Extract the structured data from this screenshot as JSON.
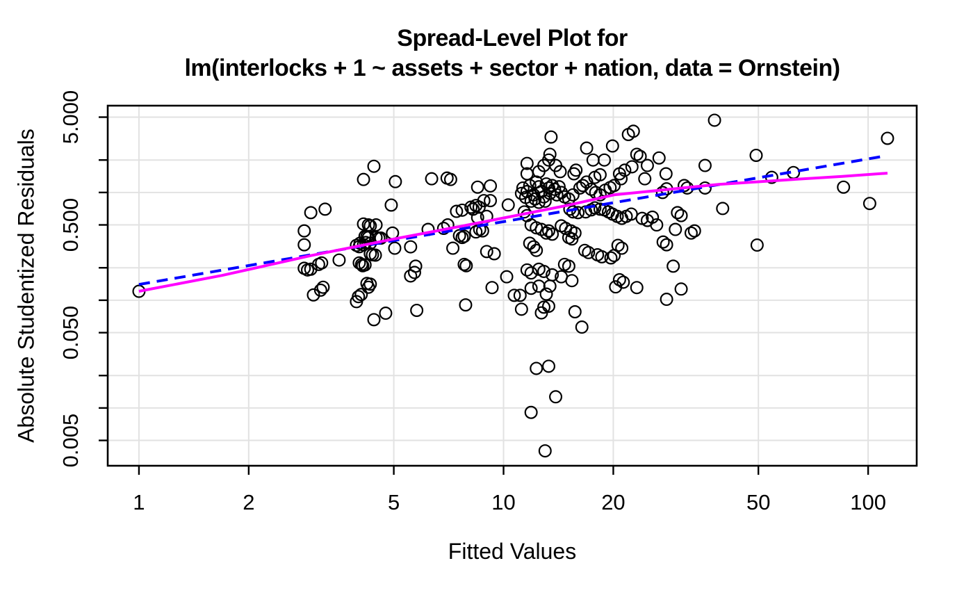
{
  "chart_data": {
    "type": "scatter",
    "title_line1": "Spread-Level Plot for",
    "title_line2": "lm(interlocks + 1 ~ assets + sector + nation, data = Ornstein)",
    "xlabel": "Fitted Values",
    "ylabel": "Absolute Studentized Residuals",
    "x_scale": "log",
    "y_scale": "log",
    "xlim": [
      0.821,
      135.9
    ],
    "ylim": [
      0.00291,
      6.39
    ],
    "grid": true,
    "x_ticks": [
      {
        "v": 1,
        "label": "1"
      },
      {
        "v": 2,
        "label": "2"
      },
      {
        "v": 5,
        "label": "5"
      },
      {
        "v": 10,
        "label": "10"
      },
      {
        "v": 20,
        "label": "20"
      },
      {
        "v": 50,
        "label": "50"
      },
      {
        "v": 100,
        "label": "100"
      }
    ],
    "y_ticks": [
      {
        "v": 5,
        "label": "5.000"
      },
      {
        "v": 2,
        "label": ""
      },
      {
        "v": 1,
        "label": ""
      },
      {
        "v": 0.5,
        "label": "0.500"
      },
      {
        "v": 0.2,
        "label": ""
      },
      {
        "v": 0.1,
        "label": ""
      },
      {
        "v": 0.05,
        "label": "0.050"
      },
      {
        "v": 0.02,
        "label": ""
      },
      {
        "v": 0.01,
        "label": ""
      },
      {
        "v": 0.005,
        "label": "0.005"
      }
    ],
    "series": [
      {
        "name": "observations",
        "type": "scatter",
        "marker": "open-circle",
        "color": "#000000",
        "points": [
          [
            1.0,
            0.121
          ],
          [
            2.96,
            0.65
          ],
          [
            3.24,
            0.7
          ],
          [
            2.84,
            0.44
          ],
          [
            2.84,
            0.327
          ],
          [
            3.11,
            0.215
          ],
          [
            3.17,
            0.222
          ],
          [
            2.84,
            0.198
          ],
          [
            2.9,
            0.191
          ],
          [
            2.96,
            0.194
          ],
          [
            3.2,
            0.132
          ],
          [
            3.54,
            0.236
          ],
          [
            3.01,
            0.112
          ],
          [
            3.15,
            0.124
          ],
          [
            4.13,
            1.32
          ],
          [
            4.41,
            1.75
          ],
          [
            4.13,
            0.51
          ],
          [
            4.26,
            0.5
          ],
          [
            4.31,
            0.49
          ],
          [
            4.47,
            0.5
          ],
          [
            4.22,
            0.39
          ],
          [
            4.31,
            0.337
          ],
          [
            3.95,
            0.323
          ],
          [
            4.02,
            0.314
          ],
          [
            4.11,
            0.209
          ],
          [
            4.02,
            0.222
          ],
          [
            4.08,
            0.215
          ],
          [
            4.22,
            0.143
          ],
          [
            4.31,
            0.141
          ],
          [
            4.17,
            0.392
          ],
          [
            4.26,
            0.382
          ],
          [
            4.47,
            0.382
          ],
          [
            4.55,
            0.377
          ],
          [
            4.61,
            0.377
          ],
          [
            4.04,
            0.338
          ],
          [
            4.13,
            0.327
          ],
          [
            4.19,
            0.343
          ],
          [
            4.31,
            0.27
          ],
          [
            4.37,
            0.264
          ],
          [
            4.45,
            0.262
          ],
          [
            4.17,
            0.213
          ],
          [
            3.95,
            0.097
          ],
          [
            4.0,
            0.108
          ],
          [
            4.07,
            0.113
          ],
          [
            4.26,
            0.132
          ],
          [
            4.41,
            0.066
          ],
          [
            4.75,
            0.0758
          ],
          [
            4.96,
            0.42
          ],
          [
            5.03,
            0.304
          ],
          [
            4.92,
            0.764
          ],
          [
            5.05,
            1.26
          ],
          [
            5.56,
            0.313
          ],
          [
            5.74,
            0.207
          ],
          [
            5.56,
            0.168
          ],
          [
            5.7,
            0.181
          ],
          [
            5.78,
            0.0805
          ],
          [
            6.21,
            0.454
          ],
          [
            6.35,
            1.34
          ],
          [
            6.85,
            0.464
          ],
          [
            7.03,
            0.5
          ],
          [
            7.0,
            1.36
          ],
          [
            7.16,
            1.32
          ],
          [
            7.26,
            0.304
          ],
          [
            7.43,
            0.668
          ],
          [
            7.57,
            0.397
          ],
          [
            7.7,
            0.685
          ],
          [
            7.7,
            0.382
          ],
          [
            7.8,
            0.392
          ],
          [
            7.8,
            0.215
          ],
          [
            7.9,
            0.209
          ],
          [
            7.87,
            0.0905
          ],
          [
            8.14,
            0.73
          ],
          [
            8.25,
            0.7
          ],
          [
            8.4,
            0.757
          ],
          [
            8.4,
            0.43
          ],
          [
            8.49,
            1.12
          ],
          [
            8.49,
            0.585
          ],
          [
            8.57,
            0.73
          ],
          [
            8.6,
            0.454
          ],
          [
            8.76,
            0.44
          ],
          [
            8.83,
            0.84
          ],
          [
            8.99,
            0.6
          ],
          [
            8.99,
            0.283
          ],
          [
            9.2,
            1.15
          ],
          [
            9.2,
            0.84
          ],
          [
            9.3,
            0.131
          ],
          [
            9.43,
            0.27
          ],
          [
            10.2,
            0.165
          ],
          [
            10.3,
            0.766
          ],
          [
            10.7,
            0.111
          ],
          [
            11.6,
            1.86
          ],
          [
            11.6,
            1.49
          ],
          [
            12.9,
            1.78
          ],
          [
            13.3,
            2.0
          ],
          [
            13.4,
            2.26
          ],
          [
            13.9,
            1.78
          ],
          [
            12.5,
            1.56
          ],
          [
            14.3,
            1.56
          ],
          [
            13.5,
            3.27
          ],
          [
            11.3,
            1.1
          ],
          [
            11.6,
            1.02
          ],
          [
            11.8,
            1.16
          ],
          [
            12.1,
            0.95
          ],
          [
            12.3,
            1.25
          ],
          [
            12.5,
            1.13
          ],
          [
            12.7,
            1.02
          ],
          [
            12.9,
            0.91
          ],
          [
            13.1,
            1.2
          ],
          [
            13.3,
            1.1
          ],
          [
            13.4,
            0.98
          ],
          [
            13.6,
            1.16
          ],
          [
            13.8,
            1.07
          ],
          [
            14.0,
            0.95
          ],
          [
            14.2,
            1.13
          ],
          [
            14.4,
            1.0
          ],
          [
            11.2,
            0.98
          ],
          [
            11.5,
            0.9
          ],
          [
            11.9,
            0.83
          ],
          [
            12.2,
            0.87
          ],
          [
            12.5,
            0.81
          ],
          [
            13.0,
            0.83
          ],
          [
            11.4,
            0.66
          ],
          [
            11.6,
            0.61
          ],
          [
            11.9,
            0.5
          ],
          [
            12.3,
            0.47
          ],
          [
            12.7,
            0.454
          ],
          [
            13.1,
            0.42
          ],
          [
            13.3,
            0.44
          ],
          [
            13.6,
            0.41
          ],
          [
            11.8,
            0.338
          ],
          [
            12.1,
            0.313
          ],
          [
            12.3,
            0.29
          ],
          [
            11.6,
            0.191
          ],
          [
            11.9,
            0.179
          ],
          [
            12.5,
            0.194
          ],
          [
            12.9,
            0.185
          ],
          [
            13.6,
            0.172
          ],
          [
            11.1,
            0.111
          ],
          [
            11.2,
            0.0825
          ],
          [
            11.9,
            0.129
          ],
          [
            12.5,
            0.135
          ],
          [
            12.7,
            0.0763
          ],
          [
            12.9,
            0.0862
          ],
          [
            13.1,
            0.114
          ],
          [
            13.3,
            0.088
          ],
          [
            13.4,
            0.135
          ],
          [
            12.3,
            0.0233
          ],
          [
            13.3,
            0.0244
          ],
          [
            13.9,
            0.0127
          ],
          [
            11.9,
            0.0091
          ],
          [
            13.0,
            0.004
          ],
          [
            14.7,
            0.91
          ],
          [
            15.1,
            0.87
          ],
          [
            15.5,
            0.95
          ],
          [
            16.2,
            1.1
          ],
          [
            16.5,
            1.16
          ],
          [
            16.9,
            1.25
          ],
          [
            17.4,
            1.07
          ],
          [
            17.9,
            1.0
          ],
          [
            18.4,
            0.95
          ],
          [
            19.0,
            1.05
          ],
          [
            19.6,
            1.11
          ],
          [
            20.1,
            1.16
          ],
          [
            15.6,
            1.49
          ],
          [
            15.8,
            1.61
          ],
          [
            16.9,
            2.58
          ],
          [
            17.6,
            2.0
          ],
          [
            18.9,
            2.0
          ],
          [
            19.9,
            2.7
          ],
          [
            17.8,
            1.38
          ],
          [
            18.4,
            1.46
          ],
          [
            15.2,
            0.7
          ],
          [
            15.5,
            0.66
          ],
          [
            16.0,
            0.65
          ],
          [
            16.8,
            0.66
          ],
          [
            17.4,
            0.69
          ],
          [
            17.8,
            0.72
          ],
          [
            18.4,
            0.7
          ],
          [
            18.9,
            0.69
          ],
          [
            19.4,
            0.66
          ],
          [
            19.9,
            0.63
          ],
          [
            14.4,
            0.49
          ],
          [
            14.8,
            0.464
          ],
          [
            15.3,
            0.44
          ],
          [
            15.7,
            0.42
          ],
          [
            15.1,
            0.382
          ],
          [
            15.4,
            0.37
          ],
          [
            14.7,
            0.215
          ],
          [
            15.1,
            0.207
          ],
          [
            16.7,
            0.29
          ],
          [
            17.1,
            0.277
          ],
          [
            18.1,
            0.264
          ],
          [
            18.6,
            0.253
          ],
          [
            19.7,
            0.247
          ],
          [
            20.1,
            0.26
          ],
          [
            14.4,
            0.165
          ],
          [
            15.4,
            0.152
          ],
          [
            15.7,
            0.0781
          ],
          [
            16.4,
            0.0563
          ],
          [
            20.3,
            0.133
          ],
          [
            22.0,
            3.45
          ],
          [
            22.7,
            3.7
          ],
          [
            23.2,
            2.26
          ],
          [
            23.7,
            2.16
          ],
          [
            26.7,
            2.09
          ],
          [
            20.8,
            1.49
          ],
          [
            21.0,
            1.34
          ],
          [
            21.5,
            1.61
          ],
          [
            22.5,
            1.73
          ],
          [
            24.4,
            1.34
          ],
          [
            24.8,
            1.78
          ],
          [
            27.9,
            1.49
          ],
          [
            28.0,
            1.08
          ],
          [
            27.3,
            1.0
          ],
          [
            20.5,
            0.6
          ],
          [
            21.1,
            0.575
          ],
          [
            21.7,
            0.6
          ],
          [
            22.4,
            0.63
          ],
          [
            20.6,
            0.323
          ],
          [
            21.1,
            0.304
          ],
          [
            24.0,
            0.575
          ],
          [
            24.8,
            0.55
          ],
          [
            25.6,
            0.59
          ],
          [
            26.3,
            0.5
          ],
          [
            27.4,
            0.347
          ],
          [
            28.0,
            0.327
          ],
          [
            20.8,
            0.155
          ],
          [
            21.3,
            0.147
          ],
          [
            23.2,
            0.131
          ],
          [
            28.0,
            0.102
          ],
          [
            29.2,
            0.207
          ],
          [
            35.7,
            1.78
          ],
          [
            37.9,
            4.68
          ],
          [
            31.3,
            1.16
          ],
          [
            31.9,
            1.1
          ],
          [
            35.7,
            1.1
          ],
          [
            30.0,
            0.65
          ],
          [
            30.7,
            0.61
          ],
          [
            32.7,
            0.42
          ],
          [
            33.4,
            0.44
          ],
          [
            29.6,
            0.454
          ],
          [
            30.7,
            0.127
          ],
          [
            39.9,
            0.71
          ],
          [
            49.3,
            2.21
          ],
          [
            113.0,
            3.18
          ],
          [
            54.4,
            1.38
          ],
          [
            62.4,
            1.53
          ],
          [
            85.6,
            1.12
          ],
          [
            101.0,
            0.79
          ],
          [
            49.6,
            0.325
          ]
        ]
      },
      {
        "name": "power-fit-line",
        "type": "line",
        "dashed": true,
        "color": "#0000FF",
        "points": [
          [
            1.0,
            0.14
          ],
          [
            112.0,
            2.19
          ]
        ]
      },
      {
        "name": "lowess-smooth-line",
        "type": "line",
        "dashed": false,
        "color": "#FF00FF",
        "points": [
          [
            1.0,
            0.121
          ],
          [
            1.69,
            0.17
          ],
          [
            2.97,
            0.26
          ],
          [
            5.0,
            0.37
          ],
          [
            7.5,
            0.48
          ],
          [
            10.8,
            0.61
          ],
          [
            15.0,
            0.76
          ],
          [
            20.1,
            0.95
          ],
          [
            30.0,
            1.09
          ],
          [
            38.9,
            1.19
          ],
          [
            60.0,
            1.31
          ],
          [
            85.0,
            1.41
          ],
          [
            113.0,
            1.51
          ]
        ]
      }
    ]
  },
  "colors": {
    "background": "#ffffff",
    "text": "#000000",
    "grid": "#E2E2E2",
    "frame": "#000000",
    "power_fit": "#0000FF",
    "lowess": "#FF00FF"
  }
}
